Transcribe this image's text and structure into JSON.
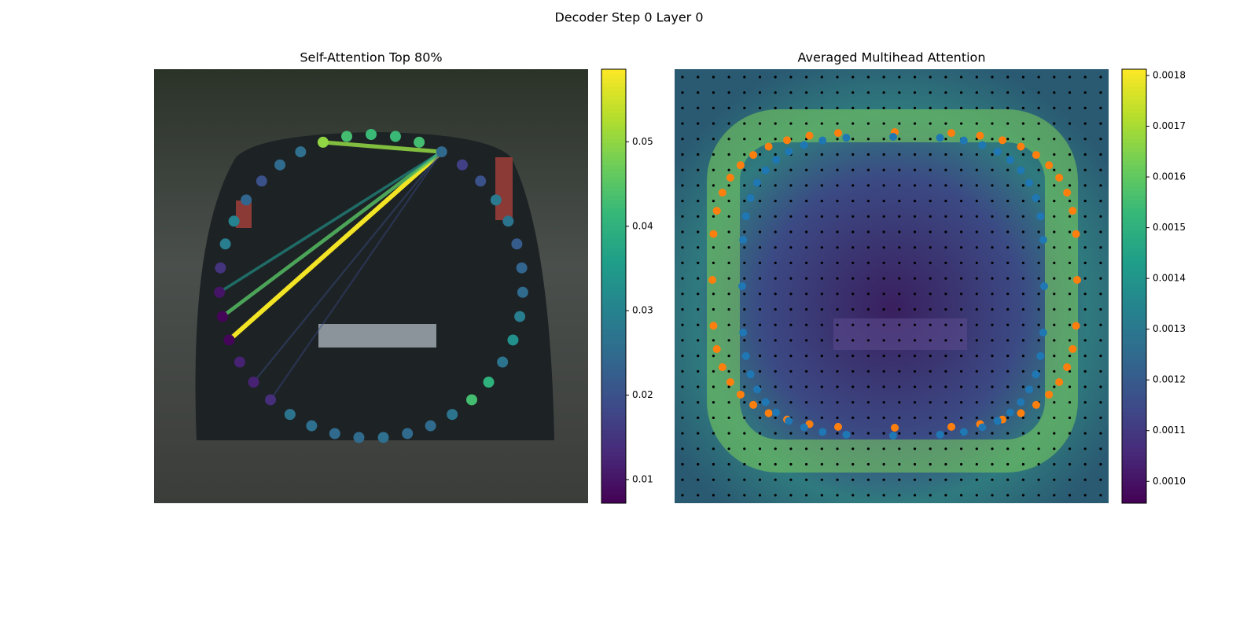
{
  "chart_data": [
    {
      "type": "attention-links",
      "suptitle": "Decoder Step 0 Layer 0",
      "title": "Self-Attention Top 80%",
      "colormap": "viridis",
      "values": [
        0.05,
        0.043,
        0.042,
        0.042,
        0.043,
        0.025,
        0.017,
        0.02,
        0.028,
        0.027,
        0.022,
        0.024,
        0.025,
        0.029,
        0.033,
        0.027,
        0.04,
        0.043,
        0.027,
        0.025,
        0.025,
        0.026,
        0.025,
        0.025,
        0.026,
        0.027,
        0.014,
        0.012,
        0.012,
        0.008,
        0.008,
        0.01,
        0.015,
        0.029,
        0.03,
        0.024,
        0.02,
        0.025,
        0.026
      ],
      "links": {
        "source": [
          5,
          5,
          5,
          5,
          5,
          5
        ],
        "target": [
          29,
          0,
          30,
          31,
          27,
          26
        ],
        "values": [
          0.058,
          0.05,
          0.045,
          0.034,
          0.02,
          0.019
        ]
      },
      "clim": [
        0.0072,
        0.0586
      ],
      "cticks": [
        0.01,
        0.02,
        0.03,
        0.04,
        0.05
      ]
    },
    {
      "type": "attention-map",
      "title": "Averaged Multihead Attention",
      "colormap": "viridis",
      "clim": [
        0.000957,
        0.0018124
      ],
      "cticks": [
        {
          "value": 0.001,
          "label": "0.0010"
        },
        0.0011,
        0.0012,
        0.0013,
        0.0014,
        0.0015,
        0.0016,
        0.0017,
        0.0018
      ]
    }
  ]
}
